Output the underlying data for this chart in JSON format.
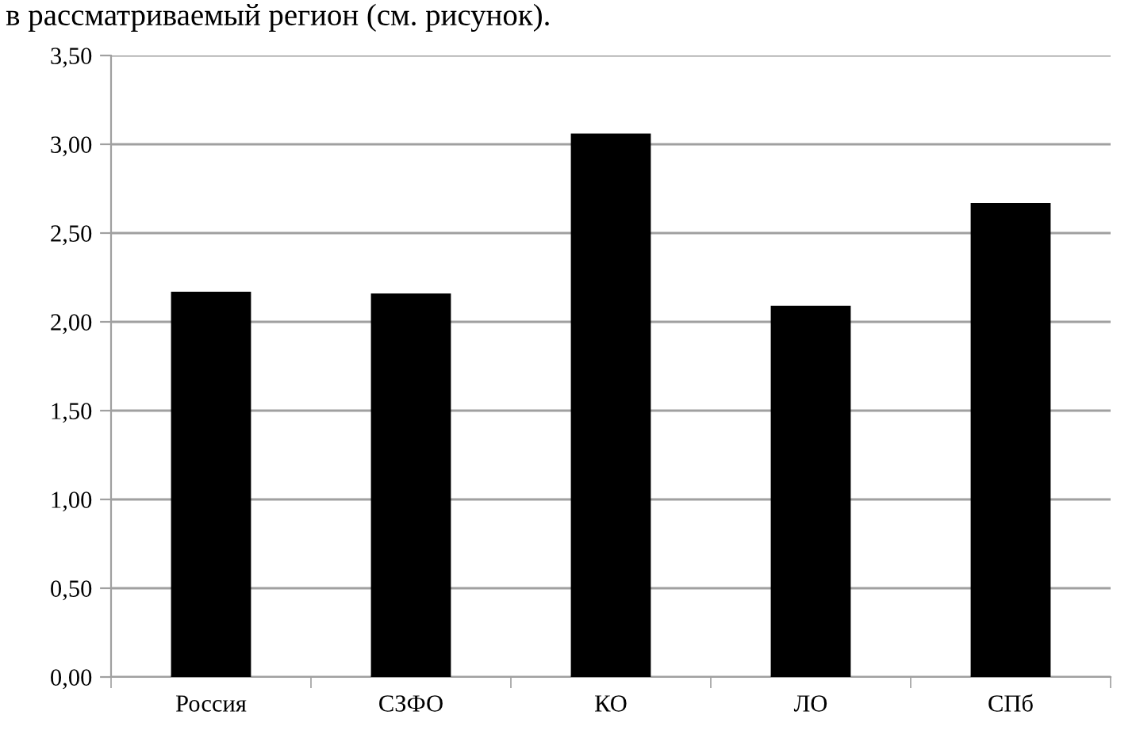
{
  "chart_data": {
    "type": "bar",
    "annotations": [
      "в рассматриваемый регион (см. рисунок)."
    ],
    "categories": [
      "Россия",
      "СЗФО",
      "КО",
      "ЛО",
      "СПб"
    ],
    "values": [
      2.17,
      2.16,
      3.06,
      2.09,
      2.67
    ],
    "color": "#000000",
    "ylim": [
      0,
      3.5
    ],
    "yticks": [
      {
        "value": 0,
        "label": "0,00"
      },
      {
        "value": 0.5,
        "label": "0,50"
      },
      {
        "value": 1,
        "label": "1,00"
      },
      {
        "value": 1.5,
        "label": "1,50"
      },
      {
        "value": 2,
        "label": "2,00"
      },
      {
        "value": 2.5,
        "label": "2,50"
      },
      {
        "value": 3,
        "label": "3,00"
      },
      {
        "value": 3.5,
        "label": "3,50"
      }
    ],
    "grid": "y"
  }
}
